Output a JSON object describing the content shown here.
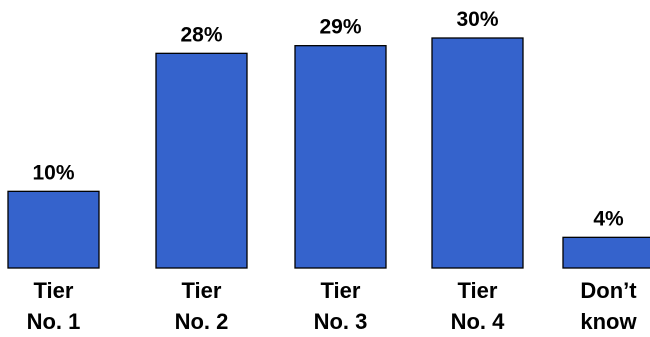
{
  "chart_data": {
    "type": "bar",
    "categories": [
      [
        "Tier",
        "No. 1"
      ],
      [
        "Tier",
        "No. 2"
      ],
      [
        "Tier",
        "No. 3"
      ],
      [
        "Tier",
        "No. 4"
      ],
      [
        "Don’t",
        "know"
      ]
    ],
    "values": [
      10,
      28,
      29,
      30,
      4
    ],
    "value_labels": [
      "10%",
      "28%",
      "29%",
      "30%",
      "4%"
    ],
    "ylim": [
      0,
      30
    ],
    "grid": false,
    "legend": "none",
    "bar_color": "#3563cc",
    "title": "",
    "xlabel": "",
    "ylabel": ""
  }
}
